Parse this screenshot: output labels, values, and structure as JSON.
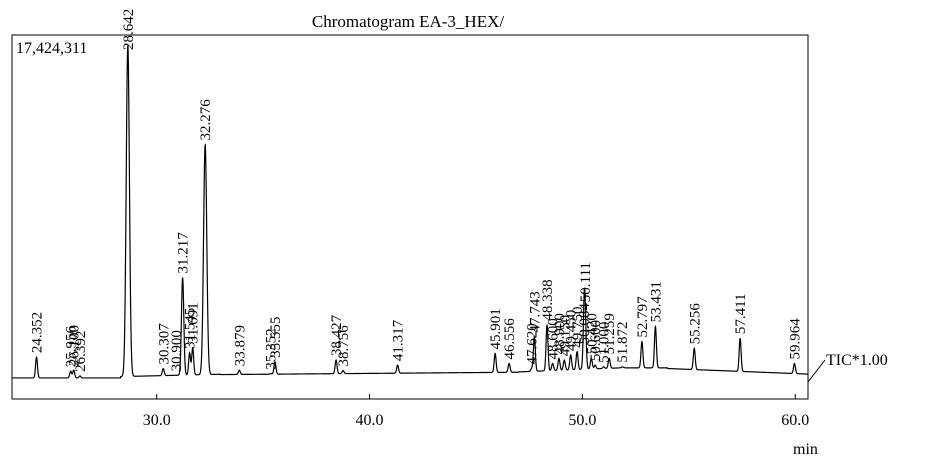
{
  "chart_data": {
    "type": "line",
    "title": "Chromatogram EA-3_HEX/",
    "max_intensity_label": "17,424,311",
    "trace_label": "TIC*1.00",
    "xlabel": "min",
    "ylabel": "",
    "xlim": [
      23.2,
      60.6
    ],
    "ylim": [
      0,
      100
    ],
    "x_ticks": [
      30.0,
      40.0,
      50.0,
      60.0
    ],
    "x_tick_labels": [
      "30.0",
      "40.0",
      "50.0",
      "60.0"
    ],
    "grid": false,
    "line_color": "#000000",
    "peaks": [
      {
        "x": 24.352,
        "y": 7.4,
        "label": "24.352"
      },
      {
        "x": 25.956,
        "y": 3.2,
        "label": "25.956"
      },
      {
        "x": 26.1,
        "y": 3.5,
        "label": "26.100"
      },
      {
        "x": 26.392,
        "y": 1.8,
        "label": "26.392"
      },
      {
        "x": 28.642,
        "y": 100.0,
        "label": "28.642"
      },
      {
        "x": 30.307,
        "y": 4.0,
        "label": "30.307"
      },
      {
        "x": 30.9,
        "y": 2.0,
        "label": "30.900"
      },
      {
        "x": 31.217,
        "y": 31.0,
        "label": "31.217"
      },
      {
        "x": 31.545,
        "y": 8.6,
        "label": "31.545"
      },
      {
        "x": 31.691,
        "y": 10.2,
        "label": "31.691"
      },
      {
        "x": 32.276,
        "y": 70.5,
        "label": "32.276"
      },
      {
        "x": 33.879,
        "y": 3.5,
        "label": "33.879"
      },
      {
        "x": 35.352,
        "y": 2.5,
        "label": "35.352"
      },
      {
        "x": 35.555,
        "y": 6.0,
        "label": "35.555"
      },
      {
        "x": 38.427,
        "y": 6.5,
        "label": "38.427"
      },
      {
        "x": 38.756,
        "y": 3.4,
        "label": "38.756"
      },
      {
        "x": 41.317,
        "y": 5.0,
        "label": "41.317"
      },
      {
        "x": 45.901,
        "y": 8.5,
        "label": "45.901"
      },
      {
        "x": 46.556,
        "y": 5.5,
        "label": "46.556"
      },
      {
        "x": 47.62,
        "y": 4.0,
        "label": "47.620"
      },
      {
        "x": 47.743,
        "y": 13.5,
        "label": "47.743"
      },
      {
        "x": 48.338,
        "y": 17.0,
        "label": "48.338"
      },
      {
        "x": 48.6,
        "y": 5.5,
        "label": "48.600"
      },
      {
        "x": 48.9,
        "y": 7.0,
        "label": "48.900"
      },
      {
        "x": 49.15,
        "y": 6.5,
        "label": "49.150"
      },
      {
        "x": 49.45,
        "y": 8.0,
        "label": "49.450"
      },
      {
        "x": 49.75,
        "y": 9.0,
        "label": "49.750"
      },
      {
        "x": 50.084,
        "y": 10.0,
        "label": "50.084"
      },
      {
        "x": 50.111,
        "y": 22.5,
        "label": "50.111"
      },
      {
        "x": 50.42,
        "y": 7.0,
        "label": "50.420"
      },
      {
        "x": 50.6,
        "y": 5.0,
        "label": "50.600"
      },
      {
        "x": 51.0,
        "y": 4.5,
        "label": "51.000"
      },
      {
        "x": 51.259,
        "y": 7.0,
        "label": "51.259"
      },
      {
        "x": 51.872,
        "y": 4.5,
        "label": "51.872"
      },
      {
        "x": 52.797,
        "y": 12.0,
        "label": "52.797"
      },
      {
        "x": 53.431,
        "y": 16.5,
        "label": "53.431"
      },
      {
        "x": 55.256,
        "y": 10.0,
        "label": "55.256"
      },
      {
        "x": 57.411,
        "y": 13.0,
        "label": "57.411"
      },
      {
        "x": 59.964,
        "y": 5.5,
        "label": "59.964"
      }
    ]
  }
}
